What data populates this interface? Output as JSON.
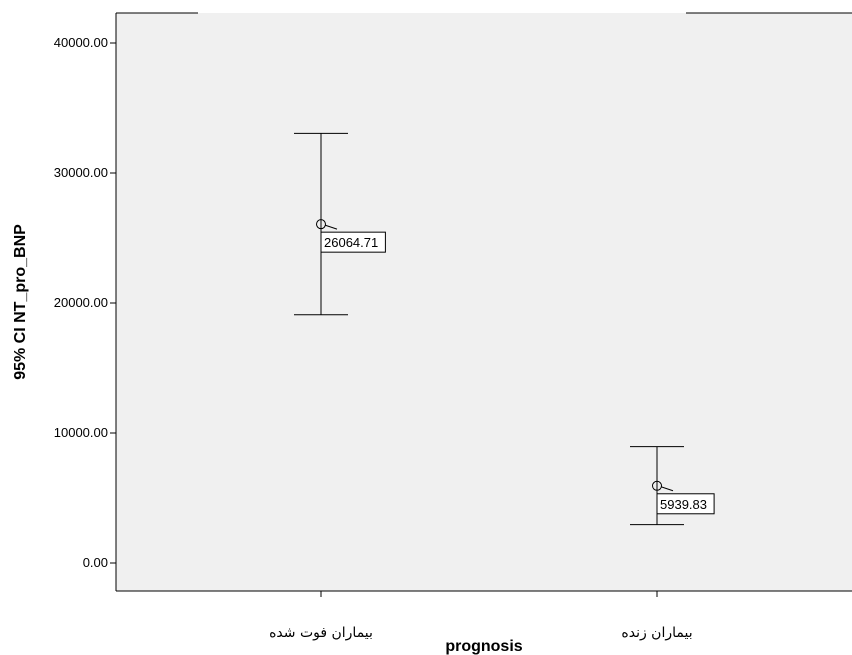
{
  "chart_data": {
    "type": "errorbar",
    "xlabel": "prognosis",
    "ylabel": "95% CI NT_pro_BNP",
    "ylim": [
      -2150,
      42400
    ],
    "yticks": [
      0,
      10000,
      20000,
      30000,
      40000
    ],
    "ytick_labels": [
      "0.00",
      "10000.00",
      "20000.00",
      "30000.00",
      "40000.00"
    ],
    "categories": [
      "بیماران فوت شده",
      "بیماران زنده"
    ],
    "series": [
      {
        "mean": [
          26064.71,
          5939.83
        ],
        "lower": [
          19100,
          2950
        ],
        "upper": [
          33050,
          8950
        ],
        "mean_labels": [
          "26064.71",
          "5939.83"
        ]
      }
    ],
    "grid": false,
    "plot_background": "#f0f0f0",
    "line_color": "#000000"
  }
}
